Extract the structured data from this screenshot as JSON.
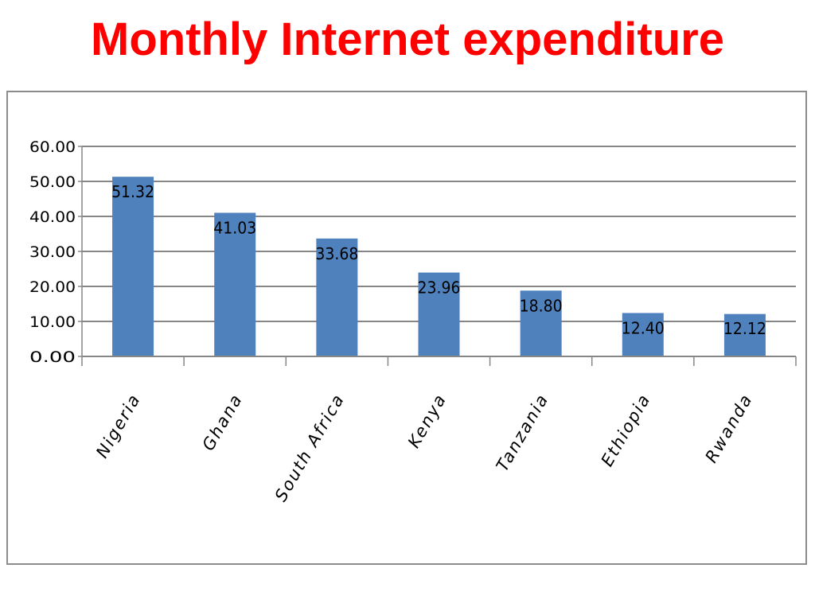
{
  "slide": {
    "title": "Monthly Internet expenditure"
  },
  "chart_data": {
    "type": "bar",
    "title": "",
    "xlabel": "",
    "ylabel": "",
    "categories": [
      "Nigeria",
      "Ghana",
      "South Africa",
      "Kenya",
      "Tanzania",
      "Ethiopia",
      "Rwanda"
    ],
    "values": [
      51.32,
      41.03,
      33.68,
      23.96,
      18.8,
      12.4,
      12.12
    ],
    "value_labels": [
      "51.32",
      "41.03",
      "33.68",
      "23.96",
      "18.80",
      "12.40",
      "12.12"
    ],
    "ylim": [
      0,
      60
    ],
    "y_ticks": [
      0,
      10,
      20,
      30,
      40,
      50,
      60
    ],
    "y_tick_labels": [
      "0.00",
      "10.00",
      "20.00",
      "30.00",
      "40.00",
      "50.00",
      "60.00"
    ],
    "grid": true,
    "legend": "none",
    "colors": {
      "bar": "#4f81bd",
      "grid": "#868686",
      "title": "#ff0000"
    }
  }
}
